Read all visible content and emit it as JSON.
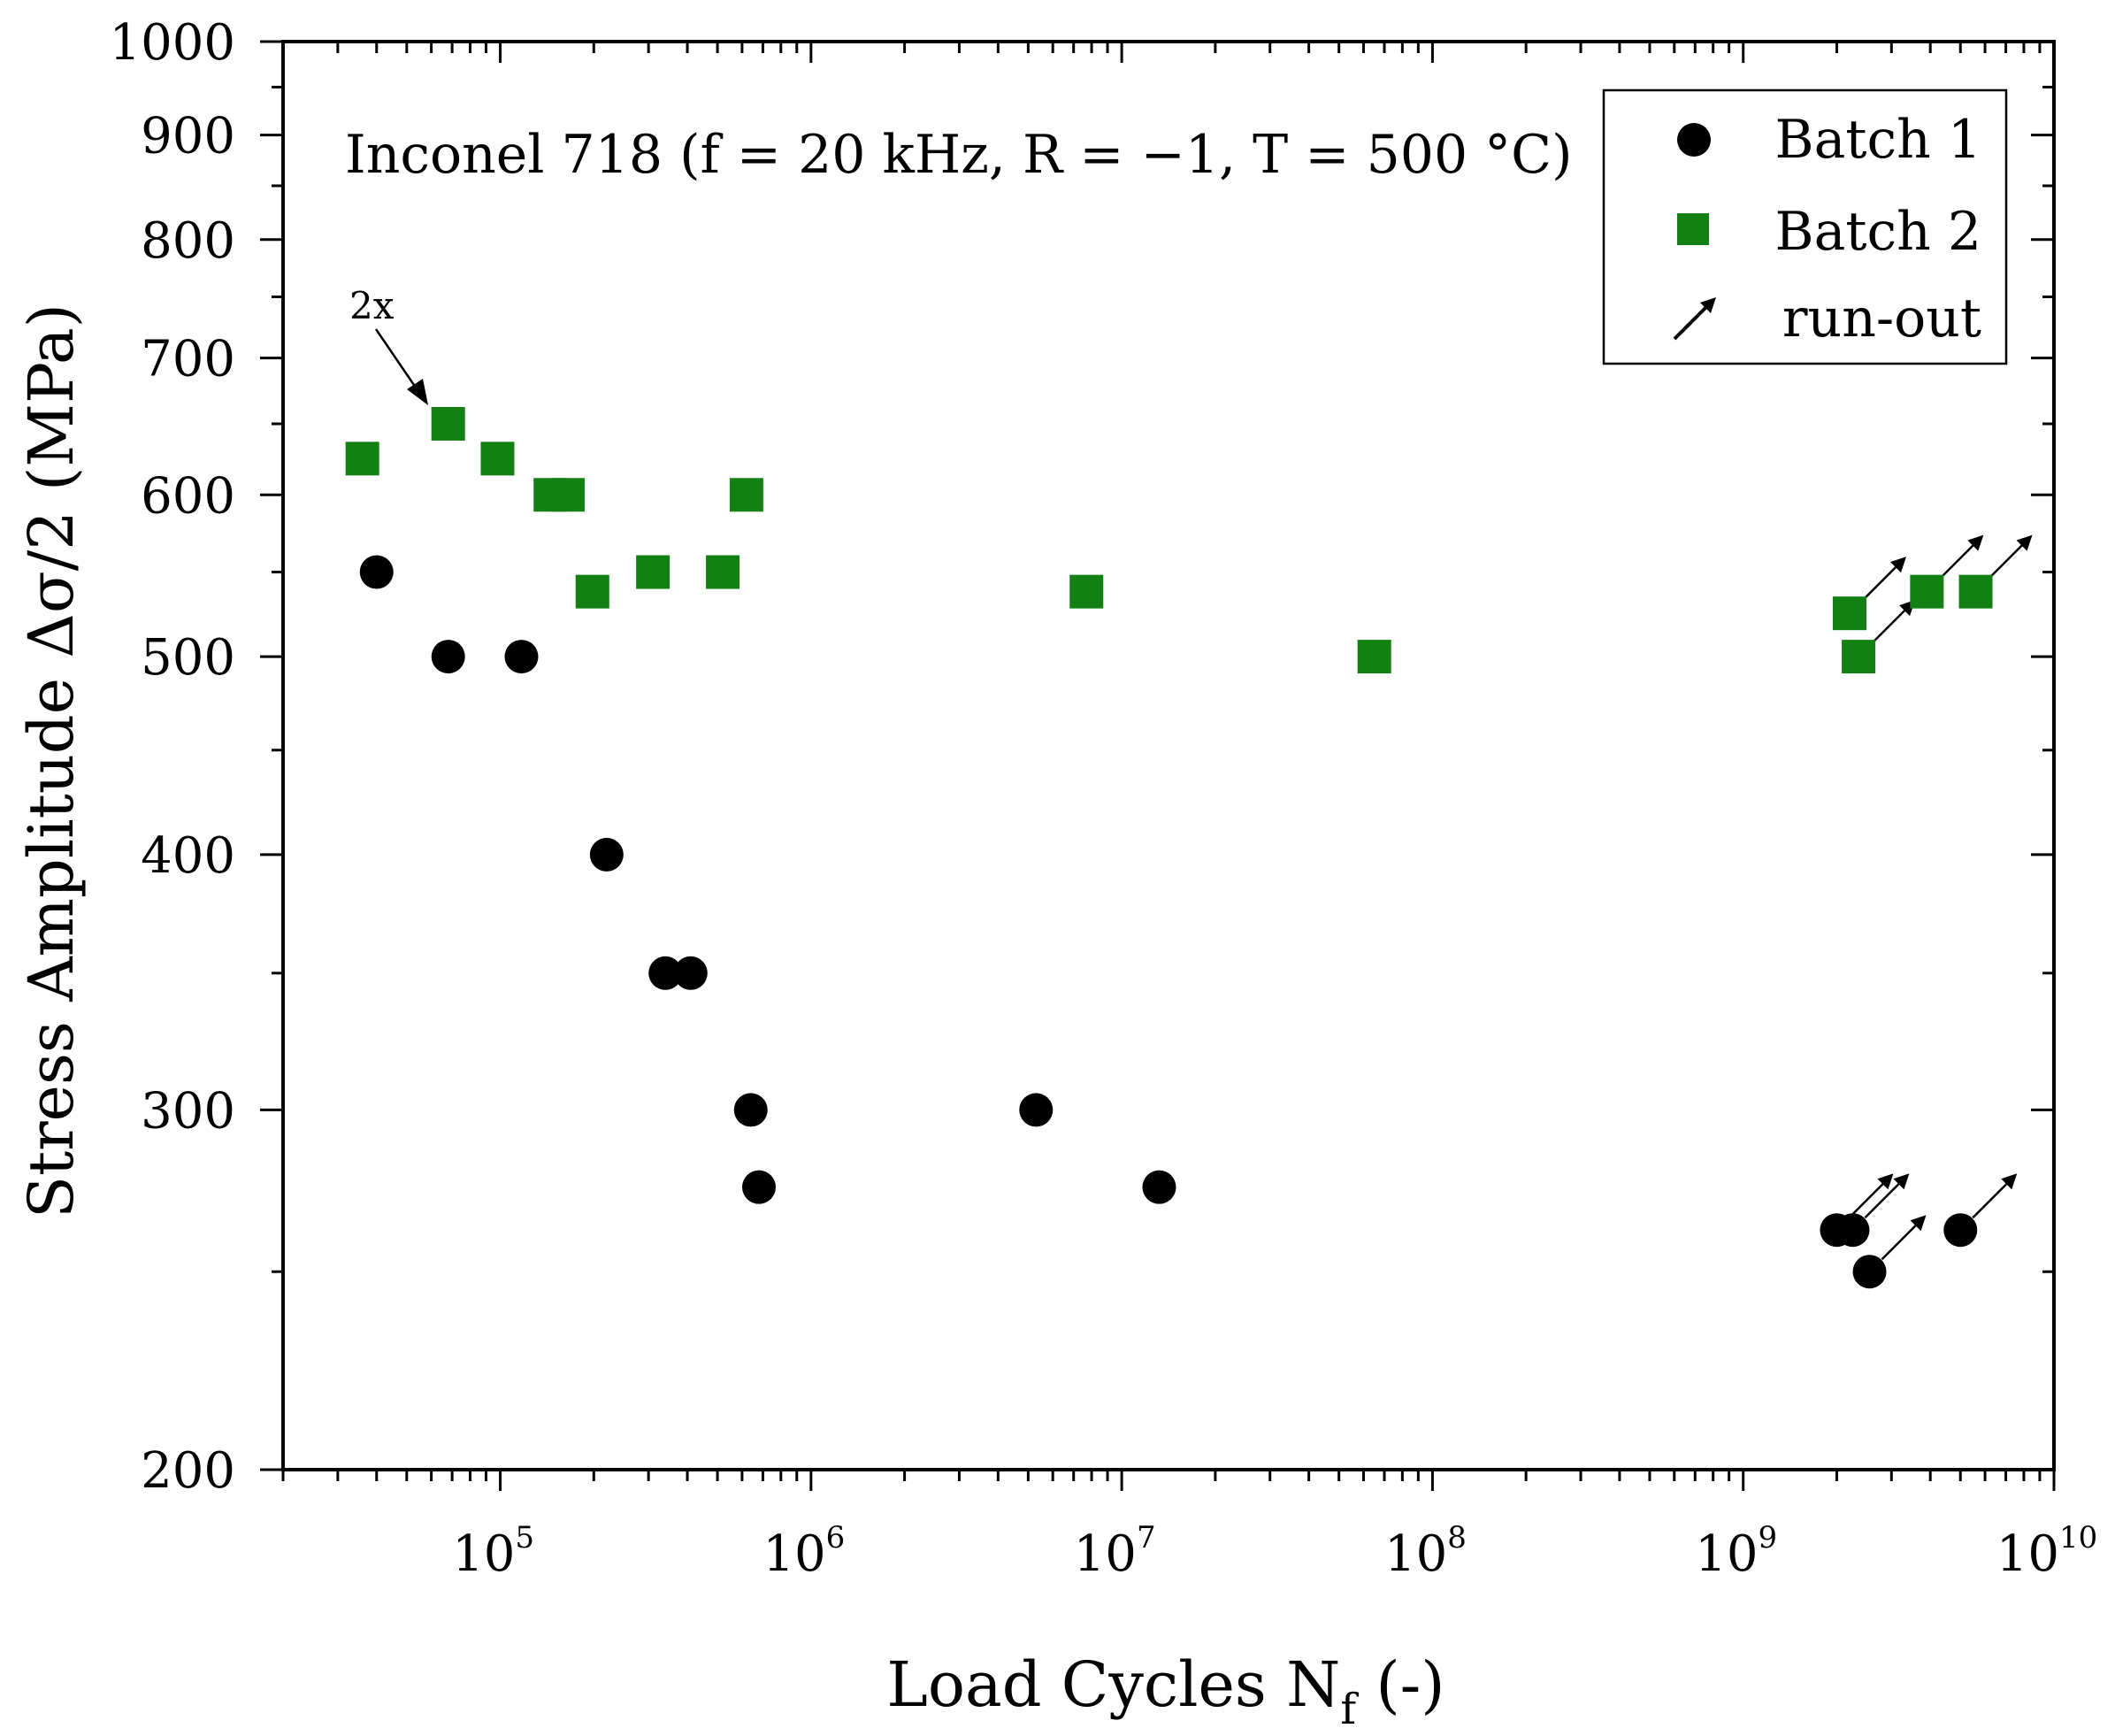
{
  "chart_data": {
    "type": "scatter",
    "title": "Inconel 718 (f = 20 kHz, R = −1, T = 500 °C)",
    "xlabel": {
      "main": "Load Cycles N",
      "sub": "f",
      "suffix": " (-)"
    },
    "ylabel": "Stress Amplitude Δσ/2 (MPa)",
    "xscale": "log",
    "yscale": "log",
    "xlim": [
      20000,
      10000000000
    ],
    "ylim": [
      200,
      1000
    ],
    "xticks": [
      {
        "value": 100000,
        "base": "10",
        "exp": "5"
      },
      {
        "value": 1000000,
        "base": "10",
        "exp": "6"
      },
      {
        "value": 10000000,
        "base": "10",
        "exp": "7"
      },
      {
        "value": 100000000,
        "base": "10",
        "exp": "8"
      },
      {
        "value": 1000000000,
        "base": "10",
        "exp": "9"
      },
      {
        "value": 10000000000,
        "base": "10",
        "exp": "10"
      }
    ],
    "yticks": [
      {
        "value": 200,
        "label": "200"
      },
      {
        "value": 300,
        "label": "300"
      },
      {
        "value": 400,
        "label": "400"
      },
      {
        "value": 500,
        "label": "500"
      },
      {
        "value": 600,
        "label": "600"
      },
      {
        "value": 700,
        "label": "700"
      },
      {
        "value": 800,
        "label": "800"
      },
      {
        "value": 900,
        "label": "900"
      },
      {
        "value": 1000,
        "label": "1000"
      }
    ],
    "legend": {
      "position": "top-right",
      "entries": [
        {
          "label": "Batch 1",
          "symbol": "circle"
        },
        {
          "label": "Batch 2",
          "symbol": "square"
        },
        {
          "label": "run-out",
          "symbol": "arrow"
        }
      ]
    },
    "annotations": [
      {
        "text": "2x",
        "x": 68000,
        "y": 650
      }
    ],
    "series": [
      {
        "name": "Batch 1",
        "marker": "circle",
        "color": "#000000",
        "points": [
          {
            "x": 40000,
            "y": 550
          },
          {
            "x": 68000,
            "y": 500
          },
          {
            "x": 117000,
            "y": 500
          },
          {
            "x": 220000,
            "y": 400
          },
          {
            "x": 340000,
            "y": 350
          },
          {
            "x": 410000,
            "y": 350
          },
          {
            "x": 640000,
            "y": 300
          },
          {
            "x": 680000,
            "y": 275
          },
          {
            "x": 5300000,
            "y": 300
          },
          {
            "x": 13200000,
            "y": 275
          },
          {
            "x": 2000000000,
            "y": 262,
            "runout": true
          },
          {
            "x": 2250000000,
            "y": 262,
            "runout": true
          },
          {
            "x": 2550000000,
            "y": 250,
            "runout": true
          },
          {
            "x": 5000000000,
            "y": 262,
            "runout": true
          }
        ]
      },
      {
        "name": "Batch 2",
        "marker": "square",
        "color": "#138013",
        "points": [
          {
            "x": 36000,
            "y": 625
          },
          {
            "x": 68000,
            "y": 650
          },
          {
            "x": 98000,
            "y": 625
          },
          {
            "x": 145000,
            "y": 600
          },
          {
            "x": 165000,
            "y": 600
          },
          {
            "x": 198000,
            "y": 538
          },
          {
            "x": 310000,
            "y": 550
          },
          {
            "x": 520000,
            "y": 550
          },
          {
            "x": 620000,
            "y": 600
          },
          {
            "x": 7700000,
            "y": 538
          },
          {
            "x": 65000000,
            "y": 500
          },
          {
            "x": 2200000000,
            "y": 525,
            "runout": true
          },
          {
            "x": 2350000000,
            "y": 500,
            "runout": true
          },
          {
            "x": 3900000000,
            "y": 538,
            "runout": true
          },
          {
            "x": 5600000000,
            "y": 538,
            "runout": true
          }
        ]
      }
    ]
  }
}
